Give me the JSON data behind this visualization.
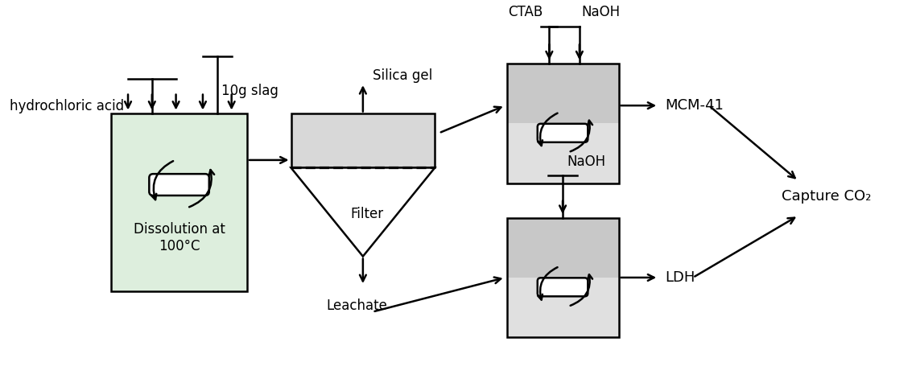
{
  "bg_color": "#ffffff",
  "text_color": "#000000",
  "beaker_fill": "#ddeedd",
  "reactor_top_fill": "#c8c8c8",
  "reactor_bottom_fill": "#e0e0e0",
  "filter_fill": "#d8d8d8",
  "line_width": 1.8,
  "figsize": [
    11.38,
    4.76
  ],
  "dpi": 100,
  "labels": {
    "hydrochloric_acid": "hydrochloric acid",
    "slag": "10g slag",
    "dissolution": "Dissolution at\n100°C",
    "filter": "Filter",
    "silica_gel": "Silica gel",
    "leachate": "Leachate",
    "ctab": "CTAB",
    "naoh1": "NaOH",
    "naoh2": "NaOH",
    "mcm41": "MCM-41",
    "ldh": "LDH",
    "capture": "Capture CO₂"
  },
  "fontsize": 12
}
